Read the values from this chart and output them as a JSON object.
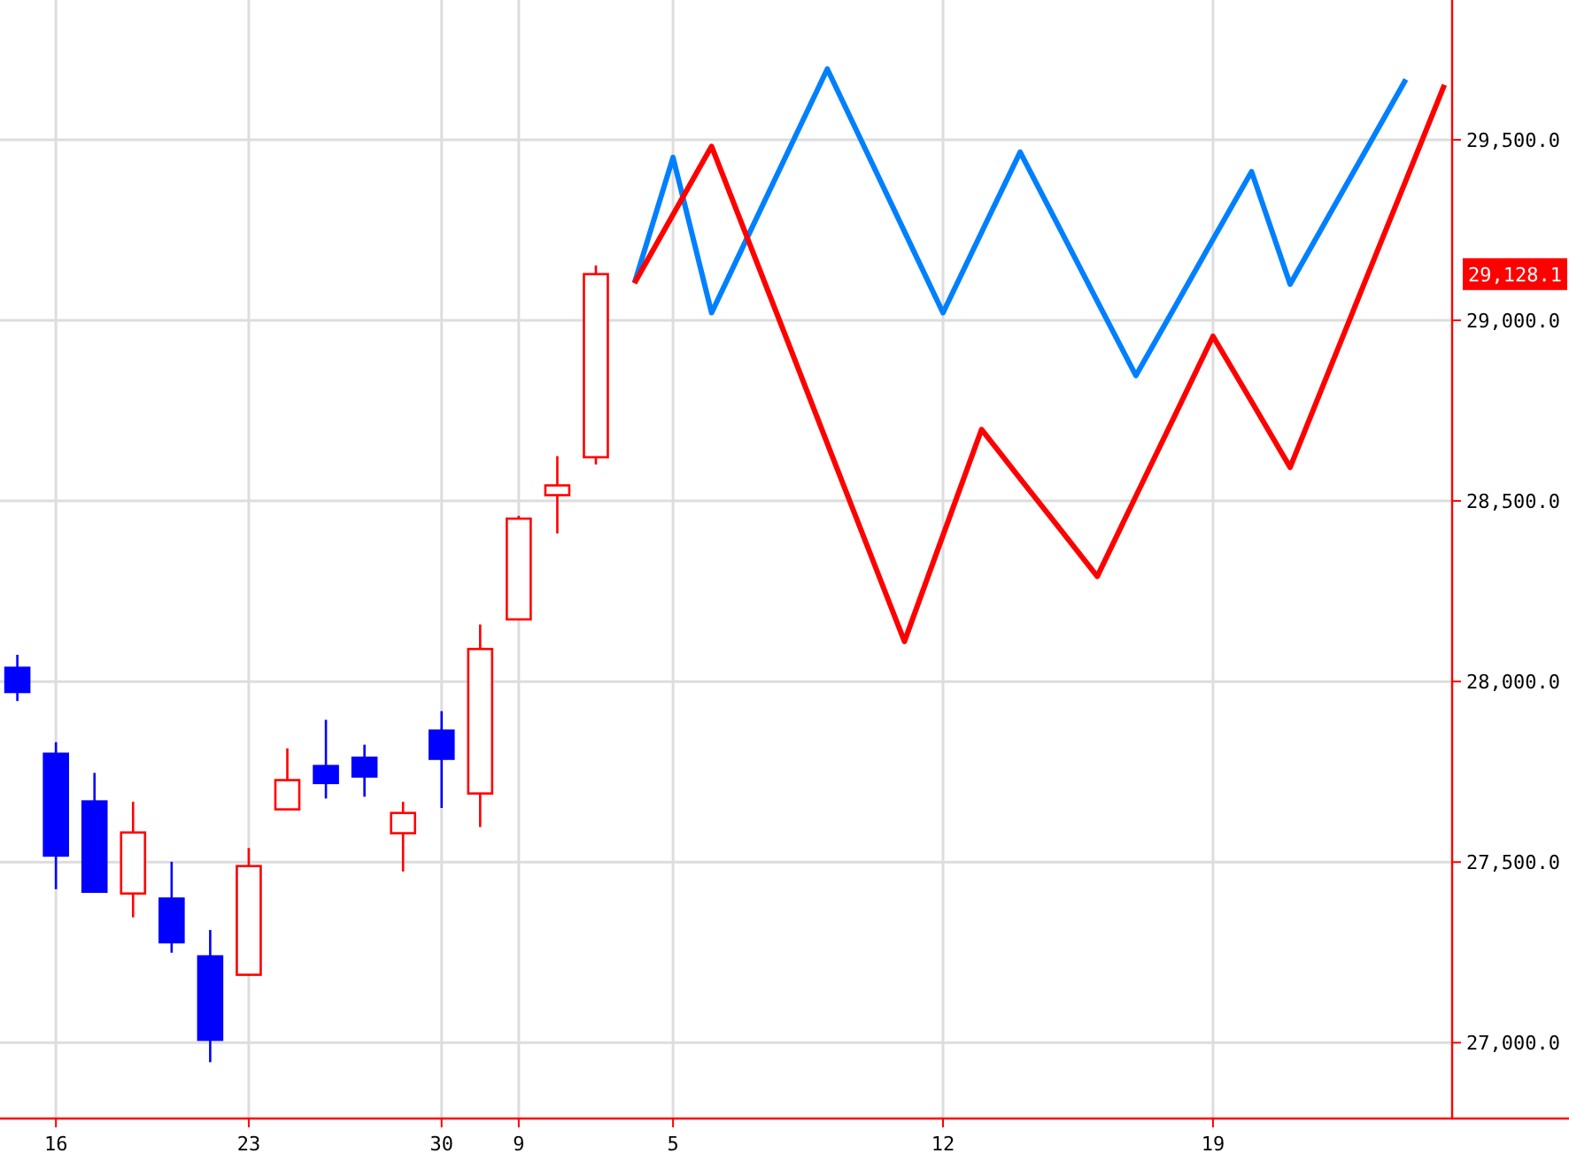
{
  "chart_data": {
    "type": "candlestick",
    "grid": true,
    "marker": "none",
    "line_style": "solid",
    "categories": [
      null,
      "16",
      null,
      null,
      null,
      null,
      "23",
      null,
      null,
      null,
      null,
      "30",
      null,
      "9",
      null,
      null,
      null,
      "5",
      null,
      null,
      null,
      null,
      null,
      null,
      "12",
      null,
      null,
      null,
      null,
      null,
      null,
      "19",
      null,
      null,
      null,
      null,
      null,
      null
    ],
    "ylim": [
      26790,
      29887
    ],
    "yticks": [
      {
        "value": 27000,
        "label": "27,000.0"
      },
      {
        "value": 27500,
        "label": "27,500.0"
      },
      {
        "value": 28000,
        "label": "28,000.0"
      },
      {
        "value": 28500,
        "label": "28,500.0"
      },
      {
        "value": 29000,
        "label": "29,000.0"
      },
      {
        "value": 29500,
        "label": "29,500.0"
      }
    ],
    "annotations": [
      "29,128.1"
    ],
    "ohlc": [
      [
        28038,
        28074,
        27946,
        27971
      ],
      [
        27800,
        27832,
        27425,
        27518
      ],
      [
        27668,
        27747,
        27415,
        27418
      ],
      [
        27413,
        27667,
        27347,
        27582
      ],
      [
        27399,
        27501,
        27249,
        27278
      ],
      [
        27239,
        27312,
        26946,
        27008
      ],
      [
        27188,
        27539,
        27185,
        27489
      ],
      [
        27646,
        27815,
        27645,
        27727
      ],
      [
        27766,
        27894,
        27676,
        27719
      ],
      [
        27789,
        27825,
        27681,
        27737
      ],
      [
        27580,
        27667,
        27474,
        27636
      ],
      [
        27864,
        27918,
        27650,
        27786
      ],
      [
        27690,
        28158,
        27597,
        28090
      ],
      [
        28172,
        28459,
        28170,
        28451
      ],
      [
        28516,
        28624,
        28410,
        28543
      ],
      [
        28621,
        29152,
        28601,
        29128
      ],
      null,
      null,
      null,
      null,
      null,
      null,
      null,
      null,
      null,
      null,
      null,
      null,
      null,
      null,
      null,
      null,
      null,
      null,
      null,
      null,
      null,
      null
    ],
    "colors": [
      "#0000ff",
      "#0000ff",
      "#0000ff",
      "#ff0000",
      "#0000ff",
      "#0000ff",
      "#ff0000",
      "#ff0000",
      "#0000ff",
      "#0000ff",
      "#ff0000",
      "#0000ff",
      "#ff0000",
      "#ff0000",
      "#ff0000",
      "#ff0000",
      null,
      null,
      null,
      null,
      null,
      null,
      null,
      null,
      null,
      null,
      null,
      null,
      null,
      null,
      null,
      null,
      null,
      null,
      null,
      null,
      null,
      null
    ],
    "series": [
      {
        "type": "line",
        "color": "#0080ff",
        "values": [
          null,
          null,
          null,
          null,
          null,
          null,
          null,
          null,
          null,
          null,
          null,
          null,
          null,
          null,
          null,
          null,
          29103,
          29451,
          29021,
          29246,
          29471,
          29696,
          29471,
          29246,
          29021,
          29244,
          29466,
          29260,
          29053,
          28847,
          29035,
          29224,
          29412,
          29100,
          29289,
          29478,
          29667,
          null
        ]
      },
      {
        "type": "line",
        "color": "#ff0000",
        "values": [
          null,
          null,
          null,
          null,
          null,
          null,
          null,
          null,
          null,
          null,
          null,
          null,
          null,
          null,
          null,
          null,
          29103,
          29293,
          29482,
          29208,
          28934,
          28659,
          28385,
          28111,
          28405,
          28698,
          28562,
          28427,
          28291,
          28513,
          28734,
          28956,
          28775,
          28593,
          28858,
          29123,
          29387,
          29652
        ]
      }
    ]
  }
}
